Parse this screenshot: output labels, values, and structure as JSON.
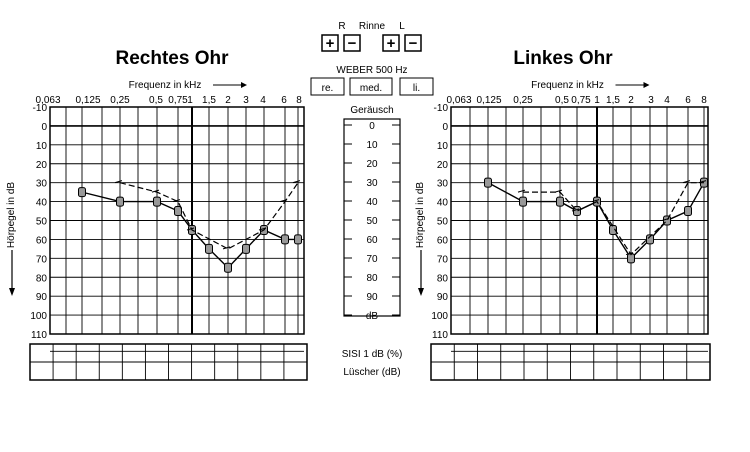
{
  "rinne": {
    "label": "Rinne",
    "right_label": "R",
    "left_label": "L",
    "plus": "+",
    "minus": "−"
  },
  "weber": {
    "label": "WEBER 500 Hz",
    "buttons": [
      "re.",
      "med.",
      "li."
    ]
  },
  "center_scale": {
    "title": "Geräusch",
    "ticks": [
      "0",
      "10",
      "20",
      "30",
      "40",
      "50",
      "60",
      "70",
      "80",
      "90",
      "dB"
    ]
  },
  "bottom": {
    "sisi_label": "SISI 1 dB  (%)",
    "luscher_label": "Lüscher  (dB)"
  },
  "chart_data": [
    {
      "type": "line",
      "title": "Rechtes Ohr",
      "xlabel": "Frequenz in kHz",
      "ylabel": "Hörpegel in dB",
      "x_ticks": [
        "0,063",
        "0,125",
        "0,25",
        "0,5",
        "0,75",
        "1",
        "1,5",
        "2",
        "3",
        "4",
        "6",
        "8"
      ],
      "y_ticks": [
        "-10",
        "0",
        "10",
        "20",
        "30",
        "40",
        "50",
        "60",
        "70",
        "80",
        "90",
        "100",
        "110"
      ],
      "ylim": [
        -10,
        110
      ],
      "y_inverted": true,
      "grid": true,
      "series": [
        {
          "style": "air-conduction-solid-with-markers",
          "x": [
            "0,125",
            "0,25",
            "0,5",
            "0,75",
            "1",
            "1,5",
            "2",
            "3",
            "4",
            "6",
            "8"
          ],
          "values": [
            35,
            40,
            40,
            45,
            55,
            65,
            75,
            65,
            55,
            60,
            60
          ]
        },
        {
          "style": "bone-conduction-dashed",
          "x": [
            "0,25",
            "0,5",
            "0,75",
            "1",
            "2",
            "4",
            "6",
            "8"
          ],
          "values": [
            30,
            35,
            40,
            55,
            65,
            55,
            40,
            30
          ]
        }
      ]
    },
    {
      "type": "line",
      "title": "Linkes Ohr",
      "xlabel": "Frequenz in kHz",
      "ylabel": "Hörpegel in dB",
      "x_ticks": [
        "0,063",
        "0,125",
        "0,25",
        "0,5",
        "0,75",
        "1",
        "1,5",
        "2",
        "3",
        "4",
        "6",
        "8"
      ],
      "y_ticks": [
        "-10",
        "0",
        "10",
        "20",
        "30",
        "40",
        "50",
        "60",
        "70",
        "80",
        "90",
        "100",
        "110"
      ],
      "ylim": [
        -10,
        110
      ],
      "y_inverted": true,
      "grid": true,
      "series": [
        {
          "style": "air-conduction-solid-with-markers",
          "x": [
            "0,125",
            "0,25",
            "0,5",
            "0,75",
            "1",
            "1,5",
            "2",
            "3",
            "4",
            "6",
            "8"
          ],
          "values": [
            30,
            40,
            40,
            45,
            40,
            55,
            70,
            60,
            50,
            45,
            30
          ]
        },
        {
          "style": "bone-conduction-dashed",
          "x": [
            "0,25",
            "0,5",
            "0,75",
            "1",
            "2",
            "4",
            "6",
            "8"
          ],
          "values": [
            35,
            35,
            45,
            40,
            68,
            50,
            30,
            30
          ]
        }
      ]
    }
  ]
}
